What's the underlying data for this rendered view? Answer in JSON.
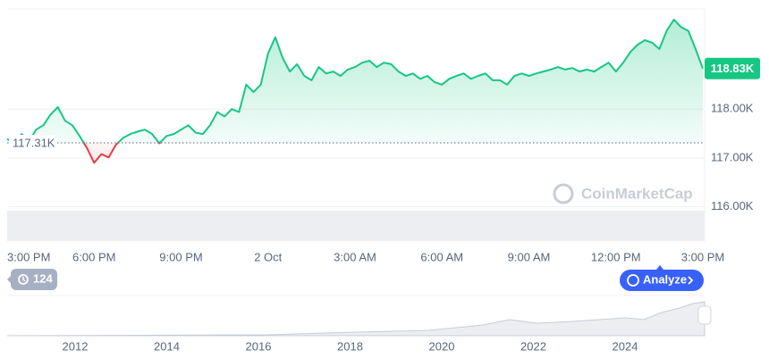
{
  "chart_data": {
    "type": "line",
    "x": [
      0,
      0.25,
      0.5,
      0.75,
      1,
      1.25,
      1.5,
      1.75,
      2,
      2.25,
      2.5,
      2.75,
      3,
      3.25,
      3.5,
      3.75,
      4,
      4.25,
      4.5,
      4.75,
      5,
      5.25,
      5.5,
      5.75,
      6,
      6.25,
      6.5,
      6.75,
      7,
      7.25,
      7.5,
      7.75,
      8,
      8.25,
      8.5,
      8.75,
      9,
      9.25,
      9.5,
      9.75,
      10,
      10.25,
      10.5,
      10.75,
      11,
      11.25,
      11.5,
      11.75,
      12,
      12.25,
      12.5,
      12.75,
      13,
      13.25,
      13.5,
      13.75,
      14,
      14.25,
      14.5,
      14.75,
      15,
      15.25,
      15.5,
      15.75,
      16,
      16.25,
      16.5,
      16.75,
      17,
      17.25,
      17.5,
      17.75,
      18,
      18.25,
      18.5,
      18.75,
      19,
      19.25,
      19.5,
      19.75,
      20,
      20.25,
      20.5,
      20.75,
      21,
      21.25,
      21.5,
      21.75,
      22,
      22.25,
      22.5,
      22.75,
      23,
      23.25,
      23.5,
      23.75,
      24
    ],
    "values": [
      117.39,
      117.3,
      117.49,
      117.34,
      117.58,
      117.67,
      117.89,
      118.04,
      117.76,
      117.67,
      117.45,
      117.21,
      116.9,
      117.08,
      117.01,
      117.27,
      117.41,
      117.49,
      117.54,
      117.58,
      117.49,
      117.3,
      117.45,
      117.49,
      117.58,
      117.67,
      117.52,
      117.49,
      117.67,
      117.94,
      117.85,
      118.0,
      117.94,
      118.5,
      118.35,
      118.5,
      119.14,
      119.47,
      119.05,
      118.77,
      118.92,
      118.68,
      118.59,
      118.86,
      118.73,
      118.77,
      118.68,
      118.81,
      118.86,
      118.95,
      118.99,
      118.86,
      118.95,
      118.92,
      118.77,
      118.68,
      118.73,
      118.62,
      118.68,
      118.55,
      118.5,
      118.62,
      118.68,
      118.73,
      118.62,
      118.68,
      118.73,
      118.59,
      118.59,
      118.5,
      118.68,
      118.73,
      118.68,
      118.73,
      118.77,
      118.81,
      118.86,
      118.81,
      118.84,
      118.77,
      118.81,
      118.77,
      118.86,
      118.95,
      118.77,
      118.95,
      119.17,
      119.32,
      119.41,
      119.36,
      119.23,
      119.6,
      119.83,
      119.68,
      119.6,
      119.23,
      118.83
    ],
    "up_color": "#16c784",
    "down_color": "#ea3943",
    "baseline": {
      "value": 117.31,
      "label": "117.31K"
    },
    "last_price": {
      "value": 118.83,
      "label": "118.83K"
    },
    "xlim": [
      0,
      24
    ],
    "xticks": [
      {
        "value": 0,
        "label": "3:00 PM"
      },
      {
        "value": 3,
        "label": "6:00 PM"
      },
      {
        "value": 6,
        "label": "9:00 PM"
      },
      {
        "value": 9,
        "label": "2 Oct"
      },
      {
        "value": 12,
        "label": "3:00 AM"
      },
      {
        "value": 15,
        "label": "6:00 AM"
      },
      {
        "value": 18,
        "label": "9:00 AM"
      },
      {
        "value": 21,
        "label": "12:00 PM"
      },
      {
        "value": 24,
        "label": "3:00 PM"
      }
    ],
    "ylim": [
      115.3,
      120.05
    ],
    "yticks": [
      {
        "value": 116,
        "label": "116.00K"
      },
      {
        "value": 117,
        "label": "117.00K"
      },
      {
        "value": 118,
        "label": "118.00K"
      }
    ],
    "grid": true,
    "watermark": "CoinMarketCap",
    "history_button": "124",
    "analyze_button": "Analyze",
    "navigator_labels": [
      "2012",
      "2014",
      "2016",
      "2018",
      "2020",
      "2022",
      "2024"
    ]
  }
}
